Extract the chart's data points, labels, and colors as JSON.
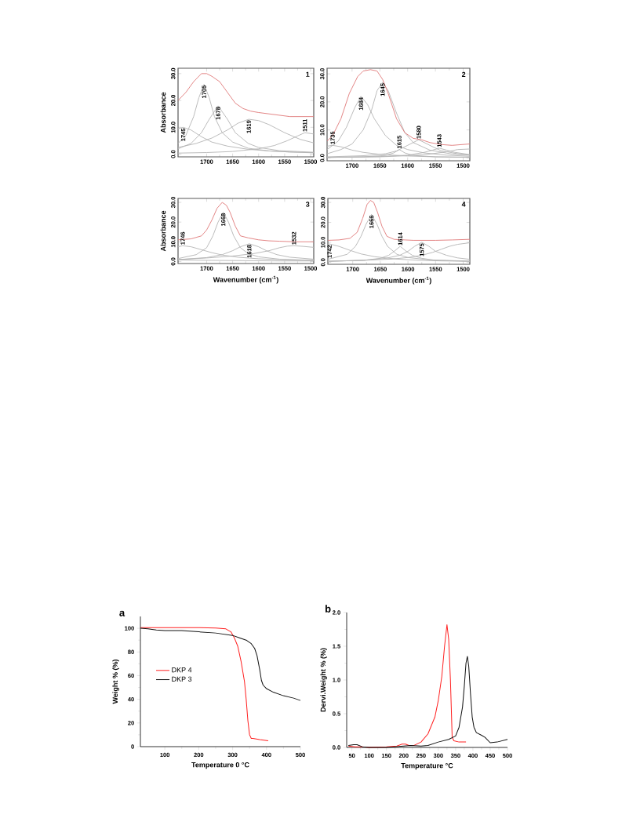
{
  "chart_data": [
    {
      "type": "line",
      "title": "1",
      "xlabel": null,
      "ylabel": "Absorbance",
      "xlim": [
        1755,
        1494
      ],
      "ylim": [
        -1,
        32
      ],
      "xticks": [
        1700,
        1650,
        1600,
        1550,
        1500
      ],
      "yticks": [
        {
          "value": 0,
          "label": "0.0"
        },
        {
          "value": 10,
          "label": "10.0"
        },
        {
          "value": 20,
          "label": "20.0"
        },
        {
          "value": 30,
          "label": "30.0"
        }
      ],
      "series": [
        {
          "color": "#b4b4b4",
          "x": [
            1755,
            1745,
            1730,
            1710,
            1690,
            1660,
            1620,
            1580,
            1540,
            1494
          ],
          "values": [
            9.5,
            10,
            9,
            6.5,
            4.5,
            3,
            1.8,
            1.2,
            0.8,
            0.6
          ]
        },
        {
          "color": "#b4b4b4",
          "x": [
            1755,
            1740,
            1725,
            1715,
            1705,
            1695,
            1685,
            1670,
            1650,
            1620,
            1580,
            1540,
            1494
          ],
          "values": [
            4,
            7,
            14,
            21,
            26,
            21,
            14,
            8,
            4.5,
            2.2,
            1.2,
            0.8,
            0.5
          ]
        },
        {
          "color": "#b4b4b4",
          "x": [
            1755,
            1730,
            1710,
            1695,
            1678,
            1660,
            1645,
            1620,
            1600,
            1560,
            1494
          ],
          "values": [
            2,
            4,
            8,
            13,
            18,
            13,
            8,
            4,
            2.5,
            1.3,
            0.7
          ]
        },
        {
          "color": "#b4b4b4",
          "x": [
            1755,
            1720,
            1690,
            1660,
            1640,
            1619,
            1600,
            1580,
            1550,
            1520,
            1494
          ],
          "values": [
            2.5,
            4,
            6,
            9,
            11.5,
            13,
            12.5,
            11,
            8,
            5.5,
            4.2
          ]
        },
        {
          "color": "#b4b4b4",
          "x": [
            1755,
            1700,
            1650,
            1600,
            1570,
            1545,
            1525,
            1511,
            1494
          ],
          "values": [
            0.4,
            0.6,
            1,
            2,
            3.2,
            5,
            6.8,
            8,
            7.5
          ]
        },
        {
          "color": "#e07878",
          "x": [
            1755,
            1740,
            1725,
            1710,
            1700,
            1690,
            1675,
            1660,
            1645,
            1630,
            1615,
            1600,
            1580,
            1560,
            1540,
            1520,
            1494
          ],
          "values": [
            20,
            23,
            27,
            30,
            30,
            29,
            27,
            23,
            19,
            17,
            16,
            15.5,
            15,
            14.5,
            14,
            14,
            14
          ]
        }
      ],
      "annotations": [
        {
          "text": "1745",
          "x": 1745,
          "y": 10
        },
        {
          "text": "1705",
          "x": 1705,
          "y": 26
        },
        {
          "text": "1678",
          "x": 1678,
          "y": 18
        },
        {
          "text": "1619",
          "x": 1619,
          "y": 13
        },
        {
          "text": "1511",
          "x": 1511,
          "y": 8
        }
      ]
    },
    {
      "type": "line",
      "title": "2",
      "xlabel": null,
      "ylabel": null,
      "xlim": [
        1745,
        1488
      ],
      "ylim": [
        -1,
        32
      ],
      "xticks": [
        1700,
        1650,
        1600,
        1550,
        1500
      ],
      "yticks": [
        {
          "value": 0,
          "label": "0.0"
        },
        {
          "value": 10,
          "label": "10.0"
        },
        {
          "value": 20,
          "label": "20.0"
        },
        {
          "value": 30,
          "label": "30.0"
        }
      ],
      "series": [
        {
          "color": "#b4b4b4",
          "x": [
            1745,
            1735,
            1720,
            1700,
            1680,
            1650,
            1600,
            1550,
            1488
          ],
          "values": [
            4.2,
            4.5,
            4,
            2.8,
            2,
            1.3,
            0.7,
            0.4,
            0.3
          ]
        },
        {
          "color": "#b4b4b4",
          "x": [
            1745,
            1725,
            1710,
            1695,
            1684,
            1672,
            1660,
            1640,
            1620,
            1600,
            1570,
            1530,
            1488
          ],
          "values": [
            3,
            6,
            11,
            18,
            22,
            19,
            14,
            8,
            4.5,
            3,
            1.8,
            1,
            0.6
          ]
        },
        {
          "color": "#b4b4b4",
          "x": [
            1745,
            1720,
            1700,
            1680,
            1665,
            1655,
            1645,
            1635,
            1620,
            1605,
            1590,
            1560,
            1520,
            1488
          ],
          "values": [
            1.5,
            3,
            5,
            10,
            17,
            24,
            27,
            24,
            16,
            9,
            5.5,
            2.8,
            1.4,
            1
          ]
        },
        {
          "color": "#b4b4b4",
          "x": [
            1745,
            1680,
            1640,
            1625,
            1615,
            1605,
            1590,
            1550,
            1488
          ],
          "values": [
            0.2,
            0.4,
            0.9,
            1.8,
            3,
            1.8,
            0.9,
            0.4,
            0.2
          ]
        },
        {
          "color": "#b4b4b4",
          "x": [
            1745,
            1680,
            1640,
            1620,
            1600,
            1580,
            1560,
            1540,
            1510,
            1488
          ],
          "values": [
            0.4,
            0.8,
            1.5,
            2.5,
            4.5,
            6.5,
            4.5,
            2.6,
            1.5,
            1
          ]
        },
        {
          "color": "#b4b4b4",
          "x": [
            1745,
            1650,
            1600,
            1570,
            1555,
            1543,
            1530,
            1515,
            1488
          ],
          "values": [
            0.2,
            0.5,
            1,
            2,
            2.8,
            3.5,
            2.8,
            2,
            1.2
          ]
        },
        {
          "color": "#b4b4b4",
          "x": [
            1745,
            1650,
            1600,
            1560,
            1530,
            1510,
            1488
          ],
          "values": [
            0.2,
            0.4,
            0.8,
            1.4,
            2.2,
            3,
            3.2
          ]
        },
        {
          "color": "#e07878",
          "x": [
            1745,
            1735,
            1720,
            1705,
            1690,
            1680,
            1667,
            1655,
            1645,
            1635,
            1620,
            1605,
            1590,
            1575,
            1560,
            1540,
            1520,
            1488
          ],
          "values": [
            6,
            8,
            14,
            23,
            29,
            31,
            31.5,
            31,
            28,
            23,
            14,
            9,
            7,
            6.5,
            5.5,
            4.8,
            4.5,
            5
          ]
        }
      ],
      "annotations": [
        {
          "text": "1735",
          "x": 1735,
          "y": 4.5
        },
        {
          "text": "1684",
          "x": 1684,
          "y": 22
        },
        {
          "text": "1645",
          "x": 1645,
          "y": 27
        },
        {
          "text": "1615",
          "x": 1615,
          "y": 3
        },
        {
          "text": "1580",
          "x": 1580,
          "y": 6.5
        },
        {
          "text": "1543",
          "x": 1543,
          "y": 3.5
        }
      ]
    },
    {
      "type": "line",
      "title": "3",
      "xlabel": "Wavenumber (cm$^{-1}$)",
      "ylabel": "Absorbance",
      "xlim": [
        1755,
        1494
      ],
      "ylim": [
        -1,
        32
      ],
      "xticks": [
        1700,
        1650,
        1600,
        1550,
        1500
      ],
      "yticks": [
        {
          "value": 0,
          "label": "0.0"
        },
        {
          "value": 10,
          "label": "10.0"
        },
        {
          "value": 20,
          "label": "20.0"
        },
        {
          "value": 30,
          "label": "30.0"
        }
      ],
      "series": [
        {
          "color": "#b4b4b4",
          "x": [
            1755,
            1746,
            1730,
            1710,
            1690,
            1670,
            1640,
            1600,
            1560,
            1494
          ],
          "values": [
            7.5,
            8,
            7.5,
            6,
            4.5,
            3.3,
            2.2,
            1.4,
            1,
            0.6
          ]
        },
        {
          "color": "#b4b4b4",
          "x": [
            1755,
            1720,
            1700,
            1688,
            1678,
            1668,
            1658,
            1648,
            1635,
            1620,
            1600,
            1560,
            1494
          ],
          "values": [
            1.5,
            3.5,
            7,
            13,
            20,
            25,
            20,
            13,
            7,
            4,
            2.4,
            1.2,
            0.6
          ]
        },
        {
          "color": "#b4b4b4",
          "x": [
            1755,
            1700,
            1670,
            1650,
            1635,
            1618,
            1600,
            1585,
            1565,
            1540,
            1494
          ],
          "values": [
            1,
            2,
            3.5,
            5.5,
            7.5,
            9,
            7.5,
            5.5,
            3.5,
            2.2,
            1.2
          ]
        },
        {
          "color": "#b4b4b4",
          "x": [
            1755,
            1700,
            1650,
            1610,
            1580,
            1560,
            1545,
            1532,
            1515,
            1494
          ],
          "values": [
            1,
            1.8,
            2.8,
            4,
            5.5,
            7,
            7.8,
            8,
            7.7,
            7.2
          ]
        },
        {
          "color": "#b4b4b4",
          "x": [
            1755,
            1700,
            1650,
            1600,
            1550,
            1494
          ],
          "values": [
            0.8,
            0.6,
            0.5,
            0.4,
            0.3,
            0.3
          ]
        },
        {
          "color": "#e07878",
          "x": [
            1755,
            1730,
            1710,
            1700,
            1690,
            1680,
            1670,
            1662,
            1655,
            1645,
            1635,
            1620,
            1600,
            1580,
            1560,
            1530,
            1494
          ],
          "values": [
            11,
            11.5,
            13,
            16,
            21,
            27,
            30,
            28.5,
            25,
            18,
            13,
            12,
            11,
            10.5,
            10.3,
            10,
            10
          ]
        }
      ],
      "annotations": [
        {
          "text": "1746",
          "x": 1746,
          "y": 8
        },
        {
          "text": "1668",
          "x": 1668,
          "y": 25
        },
        {
          "text": "1618",
          "x": 1618,
          "y": 9
        },
        {
          "text": "1532",
          "x": 1532,
          "y": 8
        }
      ]
    },
    {
      "type": "line",
      "title": "4",
      "xlabel": "Wavenumber (cm$^{-1}$)",
      "ylabel": null,
      "xlim": [
        1745,
        1488
      ],
      "ylim": [
        -1,
        32
      ],
      "xticks": [
        1700,
        1650,
        1600,
        1550,
        1500
      ],
      "yticks": [
        {
          "value": 0,
          "label": "0.0"
        },
        {
          "value": 10,
          "label": "10.0"
        },
        {
          "value": 20,
          "label": "20.0"
        },
        {
          "value": 30,
          "label": "30.0"
        }
      ],
      "series": [
        {
          "color": "#b4b4b4",
          "x": [
            1745,
            1742,
            1725,
            1705,
            1685,
            1660,
            1620,
            1580,
            1540,
            1488
          ],
          "values": [
            9,
            9.2,
            8,
            6,
            4.2,
            2.8,
            1.6,
            1,
            0.7,
            0.5
          ]
        },
        {
          "color": "#b4b4b4",
          "x": [
            1745,
            1710,
            1695,
            1685,
            1676,
            1666,
            1656,
            1647,
            1637,
            1620,
            1600,
            1560,
            1488
          ],
          "values": [
            1.5,
            4,
            8,
            13,
            19,
            24,
            19,
            13,
            8,
            4,
            2.4,
            1.2,
            0.6
          ]
        },
        {
          "color": "#b4b4b4",
          "x": [
            1745,
            1680,
            1650,
            1635,
            1625,
            1614,
            1603,
            1592,
            1575,
            1550,
            1488
          ],
          "values": [
            0.5,
            1,
            2,
            3.5,
            5.5,
            8,
            5.5,
            3.5,
            2,
            1,
            0.5
          ]
        },
        {
          "color": "#b4b4b4",
          "x": [
            1745,
            1680,
            1640,
            1615,
            1600,
            1588,
            1575,
            1562,
            1550,
            1530,
            1510,
            1488
          ],
          "values": [
            0.5,
            1,
            2,
            3.5,
            5.5,
            8,
            10,
            8,
            5.5,
            3.5,
            2.2,
            1.5
          ]
        },
        {
          "color": "#b4b4b4",
          "x": [
            1745,
            1680,
            1630,
            1600,
            1575,
            1555,
            1540,
            1525,
            1510,
            1488
          ],
          "values": [
            0.5,
            1,
            1.6,
            2.4,
            3.5,
            5,
            6.5,
            8,
            9,
            9.8
          ]
        },
        {
          "color": "#e07878",
          "x": [
            1745,
            1725,
            1705,
            1692,
            1682,
            1674,
            1668,
            1662,
            1655,
            1647,
            1638,
            1625,
            1605,
            1590,
            1575,
            1550,
            1520,
            1488
          ],
          "values": [
            11,
            11.2,
            12,
            15,
            22,
            29,
            31,
            30,
            25,
            18,
            13,
            11.5,
            11.2,
            11,
            11,
            11,
            11.2,
            11.5
          ]
        }
      ],
      "annotations": [
        {
          "text": "1742",
          "x": 1742,
          "y": 9.2
        },
        {
          "text": "1666",
          "x": 1666,
          "y": 24
        },
        {
          "text": "1614",
          "x": 1614,
          "y": 8
        },
        {
          "text": "1575",
          "x": 1575,
          "y": 10
        }
      ]
    },
    {
      "type": "line",
      "title": "a",
      "xlabel": "Temperature 0 °C",
      "ylabel": "Weight % (%)",
      "xlim": [
        28,
        500
      ],
      "ylim": [
        0,
        110
      ],
      "xticks": [
        100,
        200,
        300,
        400,
        500
      ],
      "yticks": [
        0,
        20,
        40,
        60,
        80,
        100
      ],
      "legend": "left",
      "series": [
        {
          "name": "DKP 4",
          "color": "#ff2020",
          "x": [
            28,
            100,
            200,
            250,
            280,
            295,
            305,
            315,
            325,
            335,
            340,
            345,
            350,
            355,
            360,
            380,
            405
          ],
          "values": [
            100.5,
            100.5,
            100.5,
            100.3,
            99.5,
            97,
            92,
            85,
            72,
            55,
            40,
            22,
            10,
            7,
            7,
            6,
            5
          ]
        },
        {
          "name": "DKP 3",
          "color": "#111111",
          "x": [
            28,
            50,
            75,
            100,
            150,
            200,
            250,
            300,
            320,
            340,
            355,
            365,
            372,
            380,
            385,
            390,
            400,
            420,
            450,
            480,
            500
          ],
          "values": [
            100,
            99.5,
            98.5,
            98,
            98,
            97,
            96,
            94,
            92,
            90,
            87,
            83,
            77,
            65,
            56,
            52,
            49,
            46,
            43,
            41,
            39
          ]
        }
      ]
    },
    {
      "type": "line",
      "title": "b",
      "xlabel": "Temperature °C",
      "ylabel": "Dervi.Weight % (%)",
      "xlim": [
        35,
        500
      ],
      "ylim": [
        0,
        2
      ],
      "xticks": [
        50,
        100,
        150,
        200,
        250,
        300,
        350,
        400,
        450,
        500
      ],
      "yticks": [
        {
          "value": 0,
          "label": "0.0"
        },
        {
          "value": 0.5,
          "label": "0.5"
        },
        {
          "value": 1,
          "label": "1.0"
        },
        {
          "value": 1.5,
          "label": "1.5"
        },
        {
          "value": 2,
          "label": "2.0"
        }
      ],
      "series": [
        {
          "color": "#ff2020",
          "x": [
            40,
            60,
            80,
            100,
            150,
            180,
            195,
            205,
            215,
            230,
            250,
            270,
            290,
            300,
            310,
            318,
            325,
            330,
            335,
            338,
            340,
            345,
            360,
            380
          ],
          "values": [
            0.02,
            0.01,
            0.01,
            0,
            0.01,
            0.02,
            0.05,
            0.05,
            0.03,
            0.03,
            0.08,
            0.2,
            0.45,
            0.7,
            1.05,
            1.5,
            1.82,
            1.6,
            1.0,
            0.5,
            0.15,
            0.1,
            0.08,
            0.08
          ]
        },
        {
          "color": "#111111",
          "x": [
            40,
            55,
            65,
            80,
            100,
            150,
            200,
            220,
            250,
            270,
            300,
            330,
            350,
            360,
            370,
            375,
            380,
            384,
            388,
            393,
            398,
            403,
            410,
            425,
            435,
            450,
            470,
            500
          ],
          "values": [
            0.03,
            0.04,
            0.04,
            0.01,
            0,
            0,
            0.02,
            0.03,
            0.02,
            0.03,
            0.08,
            0.12,
            0.17,
            0.3,
            0.6,
            0.9,
            1.25,
            1.35,
            1.2,
            0.8,
            0.45,
            0.3,
            0.22,
            0.18,
            0.15,
            0.07,
            0.08,
            0.12
          ]
        }
      ]
    }
  ]
}
